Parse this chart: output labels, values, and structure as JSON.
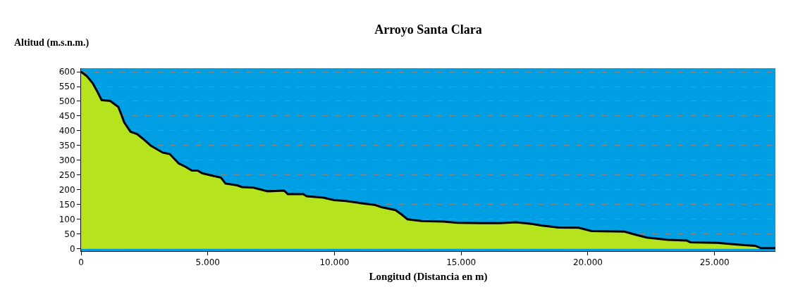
{
  "chart_data": {
    "type": "area",
    "title": "Arroyo Santa Clara",
    "xlabel": "Longitud (Distancia en m)",
    "ylabel": "Altitud (m.s.n.m.)",
    "x": [
      0,
      230,
      460,
      640,
      810,
      1150,
      1470,
      1580,
      1700,
      1950,
      2210,
      2440,
      2760,
      3220,
      3500,
      3860,
      4140,
      4370,
      4600,
      4780,
      5060,
      5520,
      5700,
      6160,
      6350,
      6800,
      7360,
      8016,
      8156,
      8765,
      8905,
      9560,
      9980,
      10450,
      11010,
      11570,
      11850,
      12410,
      12650,
      12880,
      13440,
      14290,
      14850,
      15780,
      16530,
      17170,
      17820,
      18140,
      18840,
      19630,
      20140,
      21440,
      21860,
      22320,
      23160,
      23900,
      24040,
      25110,
      25900,
      26600,
      26830,
      27400
    ],
    "series": [
      {
        "color": "#b5e31e",
        "values": [
          600,
          585,
          561,
          533,
          504,
          501,
          481,
          457,
          429,
          397,
          389,
          373,
          349,
          326,
          321,
          289,
          277,
          265,
          265,
          256,
          250,
          241,
          221,
          215,
          209,
          207,
          195,
          197,
          185,
          185,
          178,
          173,
          165,
          162,
          155,
          149,
          141,
          131,
          116,
          100,
          94,
          92,
          88,
          87,
          87,
          90,
          84,
          79,
          72,
          71,
          60,
          58,
          48,
          38,
          30,
          28,
          22,
          20,
          14,
          10,
          2,
          2
        ]
      }
    ],
    "xlim": [
      0,
      27400
    ],
    "ylim": [
      -8,
      612
    ],
    "xticks": [
      0,
      {
        "value": 5000,
        "label": "5.000"
      },
      {
        "value": 10000,
        "label": "10.000"
      },
      {
        "value": 15000,
        "label": "15.000"
      },
      {
        "value": 20000,
        "label": "20.000"
      },
      {
        "value": 25000,
        "label": "25.000"
      }
    ],
    "yticks": [
      0,
      50,
      100,
      150,
      200,
      250,
      300,
      350,
      400,
      450,
      500,
      550,
      600
    ],
    "grid": "y"
  }
}
